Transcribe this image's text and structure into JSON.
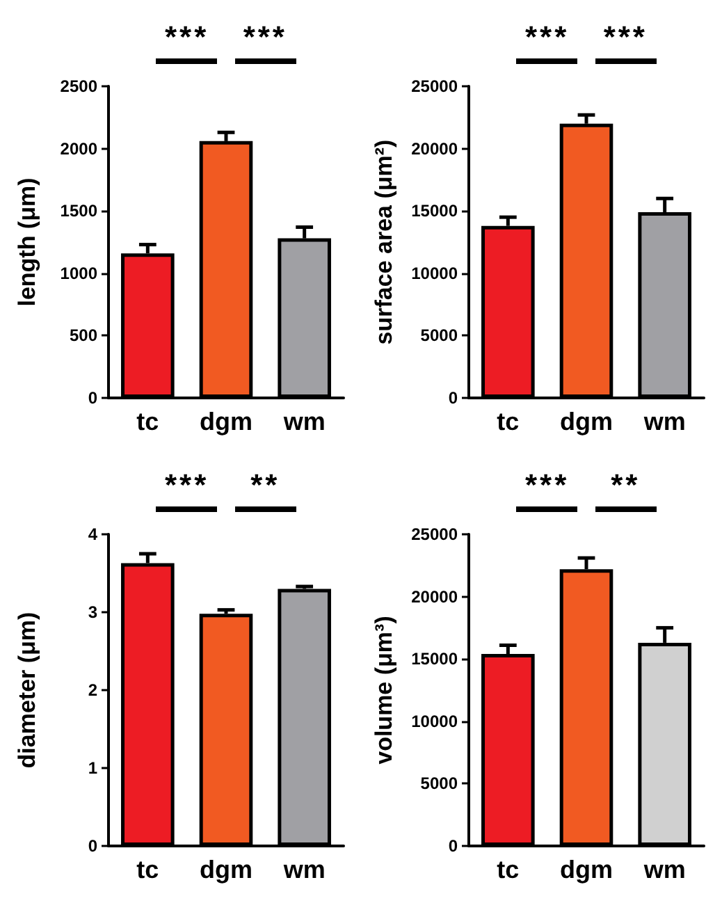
{
  "chart_data": [
    {
      "type": "bar",
      "ylabel": "length (μm)",
      "categories": [
        "tc",
        "dgm",
        "wm"
      ],
      "values": [
        1160,
        2060,
        1280
      ],
      "colors": [
        "#ed1c24",
        "#f15a22",
        "#a0a0a4"
      ],
      "errors": [
        [
          1160,
          1230
        ],
        [
          2060,
          2130
        ],
        [
          1280,
          1370
        ]
      ],
      "ylim": [
        0,
        2500
      ],
      "yticks": [
        0,
        500,
        1000,
        1500,
        2000,
        2500
      ],
      "grid": false,
      "annotations": [
        "***",
        "***"
      ]
    },
    {
      "type": "bar",
      "ylabel": "surface area (μm²)",
      "categories": [
        "tc",
        "dgm",
        "wm"
      ],
      "values": [
        13800,
        22000,
        14900
      ],
      "colors": [
        "#ed1c24",
        "#f15a22",
        "#a0a0a4"
      ],
      "errors": [
        [
          13800,
          14500
        ],
        [
          22000,
          22700
        ],
        [
          14900,
          16000
        ]
      ],
      "ylim": [
        0,
        25000
      ],
      "yticks": [
        0,
        5000,
        10000,
        15000,
        20000,
        25000
      ],
      "grid": false,
      "annotations": [
        "***",
        "***"
      ]
    },
    {
      "type": "bar",
      "ylabel": "diameter (μm)",
      "categories": [
        "tc",
        "dgm",
        "wm"
      ],
      "values": [
        3.63,
        2.98,
        3.3
      ],
      "colors": [
        "#ed1c24",
        "#f15a22",
        "#a0a0a4"
      ],
      "errors": [
        [
          3.63,
          3.75
        ],
        [
          2.98,
          3.03
        ],
        [
          3.3,
          3.33
        ]
      ],
      "ylim": [
        0,
        4
      ],
      "yticks": [
        0,
        1,
        2,
        3,
        4
      ],
      "grid": false,
      "annotations": [
        "***",
        "**"
      ]
    },
    {
      "type": "bar",
      "ylabel": "volume (μm³)",
      "categories": [
        "tc",
        "dgm",
        "wm"
      ],
      "values": [
        15400,
        22200,
        16300
      ],
      "colors": [
        "#ed1c24",
        "#f15a22",
        "#d0d0d0"
      ],
      "errors": [
        [
          15400,
          16100
        ],
        [
          22200,
          23100
        ],
        [
          16300,
          17500
        ]
      ],
      "ylim": [
        0,
        25000
      ],
      "yticks": [
        0,
        5000,
        10000,
        15000,
        20000,
        25000
      ],
      "grid": false,
      "annotations": [
        "***",
        "**"
      ]
    }
  ]
}
